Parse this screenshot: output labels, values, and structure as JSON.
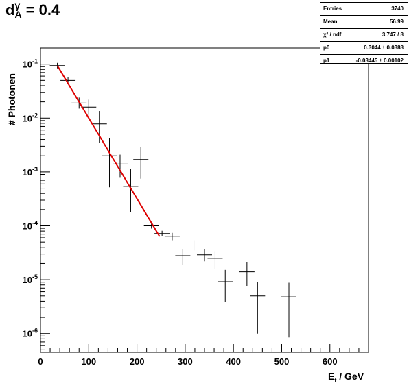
{
  "chart_data": {
    "type": "scatter",
    "title": "d_A^γ = 0.4",
    "title_parts": {
      "base": "d",
      "sup": "γ",
      "sub": "A",
      "rest": " = 0.4"
    },
    "xlabel": "E_t / GeV",
    "xlabel_parts": {
      "base": "E",
      "sub": "t",
      "rest": " / GeV"
    },
    "ylabel": "# Photonen",
    "xlim": [
      0,
      680
    ],
    "ylim": [
      4.5e-07,
      0.2
    ],
    "yscale": "log",
    "xticks": [
      "0",
      "100",
      "200",
      "300",
      "400",
      "500",
      "600"
    ],
    "yticks": [
      {
        "base": "10",
        "exp": "-1"
      },
      {
        "base": "10",
        "exp": "-2"
      },
      {
        "base": "10",
        "exp": "-3"
      },
      {
        "base": "10",
        "exp": "-4"
      },
      {
        "base": "10",
        "exp": "-5"
      },
      {
        "base": "10",
        "exp": "-6"
      }
    ],
    "grid": false,
    "points": [
      {
        "x": 35,
        "y": 0.094,
        "ylo": 0.094,
        "yhi": 0.094
      },
      {
        "x": 57,
        "y": 0.05,
        "ylo": 0.044,
        "yhi": 0.057
      },
      {
        "x": 80,
        "y": 0.019,
        "ylo": 0.015,
        "yhi": 0.024
      },
      {
        "x": 100,
        "y": 0.016,
        "ylo": 0.0115,
        "yhi": 0.022
      },
      {
        "x": 122,
        "y": 0.0078,
        "ylo": 0.0035,
        "yhi": 0.0135
      },
      {
        "x": 143,
        "y": 0.002,
        "ylo": 0.00052,
        "yhi": 0.0043
      },
      {
        "x": 165,
        "y": 0.0014,
        "ylo": 0.00078,
        "yhi": 0.0021
      },
      {
        "x": 187,
        "y": 0.00054,
        "ylo": 0.00018,
        "yhi": 0.00115
      },
      {
        "x": 208,
        "y": 0.0017,
        "ylo": 0.00075,
        "yhi": 0.0029
      },
      {
        "x": 230,
        "y": 0.0001,
        "ylo": 0.0001,
        "yhi": 0.0001
      },
      {
        "x": 252,
        "y": 7.2e-05,
        "ylo": 7.2e-05,
        "yhi": 7.2e-05
      },
      {
        "x": 273,
        "y": 6.4e-05,
        "ylo": 5.4e-05,
        "yhi": 7.4e-05
      },
      {
        "x": 295,
        "y": 2.8e-05,
        "ylo": 1.9e-05,
        "yhi": 3.7e-05
      },
      {
        "x": 318,
        "y": 4.4e-05,
        "ylo": 3.5e-05,
        "yhi": 5.4e-05
      },
      {
        "x": 340,
        "y": 2.9e-05,
        "ylo": 2.2e-05,
        "yhi": 3.7e-05
      },
      {
        "x": 362,
        "y": 2.5e-05,
        "ylo": 1.6e-05,
        "yhi": 3.4e-05
      },
      {
        "x": 383,
        "y": 9.2e-06,
        "ylo": 3.9e-06,
        "yhi": 1.52e-05
      },
      {
        "x": 428,
        "y": 1.4e-05,
        "ylo": 7.5e-06,
        "yhi": 2.1e-05
      },
      {
        "x": 450,
        "y": 5e-06,
        "ylo": 1e-06,
        "yhi": 9.1e-06
      },
      {
        "x": 515,
        "y": 4.8e-06,
        "ylo": 8.5e-07,
        "yhi": 8.8e-06
      }
    ],
    "fit": {
      "type": "expo",
      "p0": 0.3044,
      "p1": -0.03445,
      "x_range": [
        35,
        248
      ],
      "color": "#dd0000"
    },
    "stats": [
      {
        "label": "Entries",
        "value": "3740"
      },
      {
        "label": "Mean",
        "value": "56.99"
      },
      {
        "label": "χ² / ndf",
        "value": "3.747 / 8"
      },
      {
        "label": "p0",
        "value": "0.3044 ± 0.0388"
      },
      {
        "label": "p1",
        "value": "-0.03445 ± 0.00102"
      }
    ]
  }
}
